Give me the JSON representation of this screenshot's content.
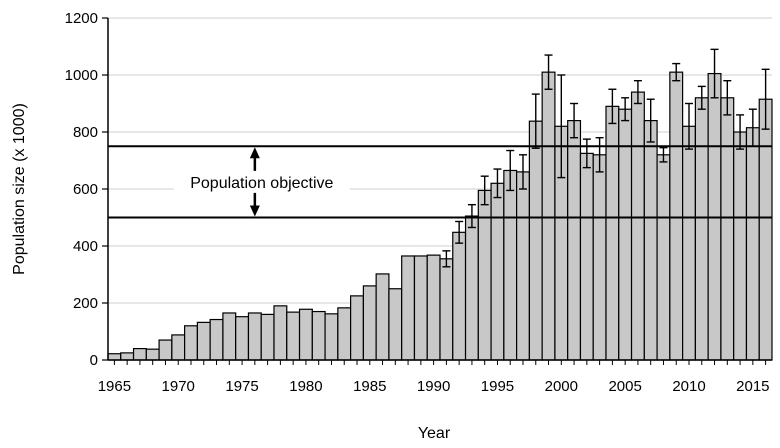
{
  "chart_data": {
    "type": "bar",
    "xlabel": "Year",
    "ylabel": "Population size (x 1000)",
    "ylim": [
      0,
      1200
    ],
    "yticks": [
      0,
      200,
      400,
      600,
      800,
      1000,
      1200
    ],
    "xticks": [
      1965,
      1970,
      1975,
      1980,
      1985,
      1990,
      1995,
      2000,
      2005,
      2010,
      2015
    ],
    "grid": "horizontal",
    "bar_color": "#c8c8c8",
    "x": [
      1965,
      1966,
      1967,
      1968,
      1969,
      1970,
      1971,
      1972,
      1973,
      1974,
      1975,
      1976,
      1977,
      1978,
      1979,
      1980,
      1981,
      1982,
      1983,
      1984,
      1985,
      1986,
      1987,
      1988,
      1989,
      1990,
      1991,
      1992,
      1993,
      1994,
      1995,
      1996,
      1997,
      1998,
      1999,
      2000,
      2001,
      2002,
      2003,
      2004,
      2005,
      2006,
      2007,
      2008,
      2009,
      2010,
      2011,
      2012,
      2013,
      2014,
      2015,
      2016
    ],
    "values": [
      22,
      25,
      40,
      38,
      70,
      88,
      120,
      132,
      142,
      165,
      152,
      165,
      160,
      190,
      168,
      178,
      170,
      162,
      183,
      225,
      260,
      302,
      250,
      365,
      365,
      368,
      355,
      448,
      505,
      595,
      620,
      665,
      660,
      838,
      1010,
      820,
      840,
      725,
      720,
      890,
      880,
      940,
      840,
      720,
      1010,
      820,
      920,
      1005,
      920,
      800,
      815,
      915
    ],
    "error": [
      null,
      null,
      null,
      null,
      null,
      null,
      null,
      null,
      null,
      null,
      null,
      null,
      null,
      null,
      null,
      null,
      null,
      null,
      null,
      null,
      null,
      null,
      null,
      null,
      null,
      null,
      28,
      38,
      40,
      50,
      50,
      70,
      60,
      95,
      60,
      180,
      60,
      50,
      60,
      60,
      40,
      40,
      75,
      25,
      30,
      80,
      40,
      85,
      60,
      60,
      65,
      105
    ],
    "reference_lines": [
      {
        "value": 750
      },
      {
        "value": 500
      }
    ],
    "annotation": "Population objective"
  }
}
